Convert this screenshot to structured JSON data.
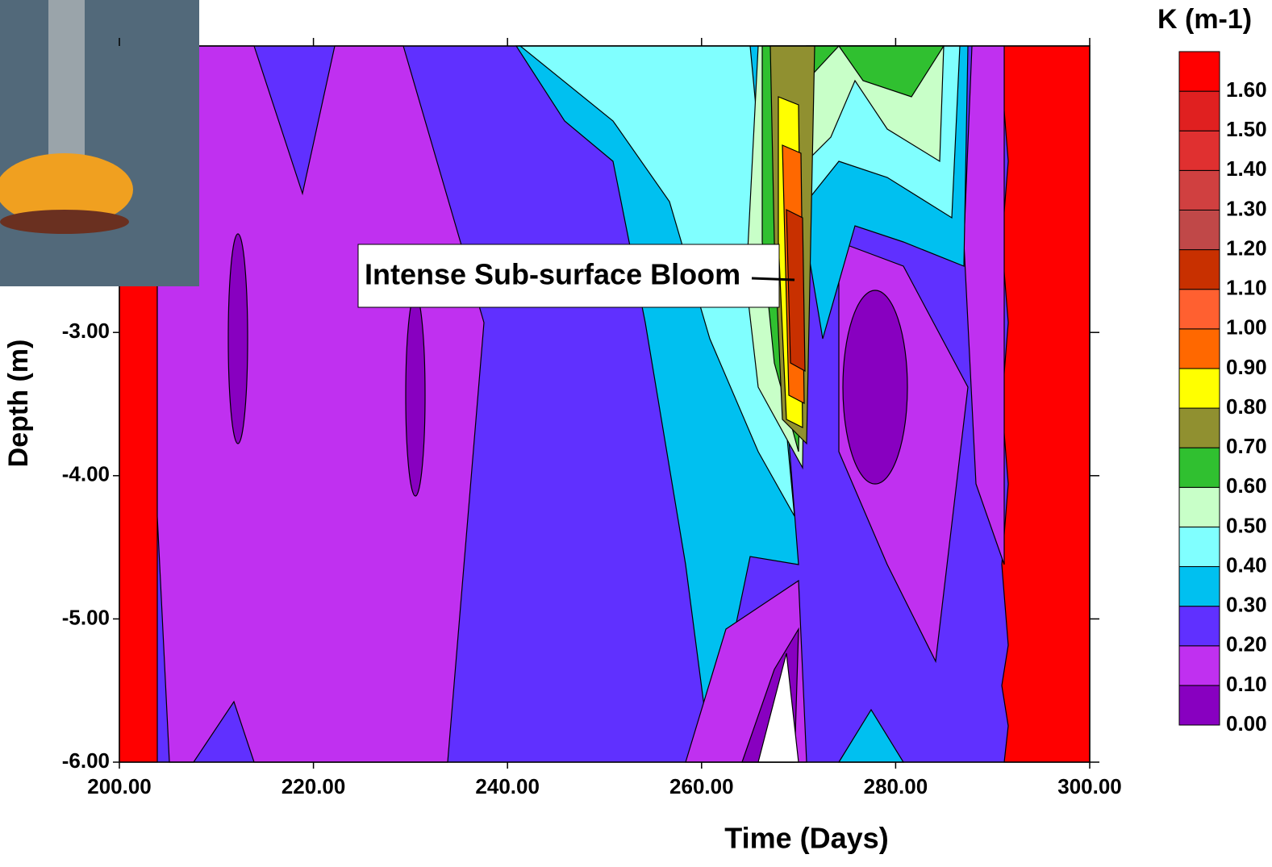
{
  "chart_data": {
    "type": "contour",
    "y_label": "Depth (m)",
    "x_label": "Time (Days)",
    "annotation": "Intense Sub-surface Bloom",
    "colorbar_title": "K (m-1)",
    "xlim": [
      200,
      300
    ],
    "xticks": [
      {
        "value": 200,
        "label": "200.00"
      },
      {
        "value": 220,
        "label": "220.00"
      },
      {
        "value": 240,
        "label": "240.00"
      },
      {
        "value": 260,
        "label": "260.00"
      },
      {
        "value": 280,
        "label": "280.00"
      },
      {
        "value": 300,
        "label": "300.00"
      }
    ],
    "ylim": [
      -6,
      -1
    ],
    "yticks": [
      {
        "value": -6,
        "label": "-6.00"
      },
      {
        "value": -5,
        "label": "-5.00"
      },
      {
        "value": -4,
        "label": "-4.00"
      },
      {
        "value": -3,
        "label": "-3.00"
      }
    ],
    "colorbar_lim": [
      0,
      1.7
    ],
    "levels": [
      {
        "value": 0,
        "label": "0.00"
      },
      {
        "value": 0.1,
        "label": "0.10"
      },
      {
        "value": 0.2,
        "label": "0.20"
      },
      {
        "value": 0.3,
        "label": "0.30"
      },
      {
        "value": 0.4,
        "label": "0.40"
      },
      {
        "value": 0.5,
        "label": "0.50"
      },
      {
        "value": 0.6,
        "label": "0.60"
      },
      {
        "value": 0.7,
        "label": "0.70"
      },
      {
        "value": 0.8,
        "label": "0.80"
      },
      {
        "value": 0.9,
        "label": "0.90"
      },
      {
        "value": 1.0,
        "label": "1.00"
      },
      {
        "value": 1.1,
        "label": "1.10"
      },
      {
        "value": 1.2,
        "label": "1.20"
      },
      {
        "value": 1.3,
        "label": "1.30"
      },
      {
        "value": 1.4,
        "label": "1.40"
      },
      {
        "value": 1.5,
        "label": "1.50"
      },
      {
        "value": 1.6,
        "label": "1.60"
      }
    ],
    "level_colors": [
      "#8800c0",
      "#c030f0",
      "#6030ff",
      "#00c0f0",
      "#80ffff",
      "#c8ffc8",
      "#30c030",
      "#909030",
      "#ffff00",
      "#ff6800",
      "#ff6030",
      "#c83000",
      "#c04848",
      "#d04040",
      "#e03030",
      "#e02020",
      "#ff0000"
    ]
  }
}
